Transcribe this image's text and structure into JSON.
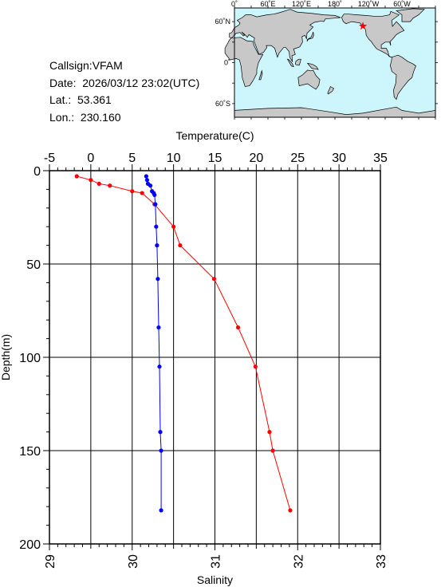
{
  "info": {
    "callsign": "Callsign:VFAM",
    "date": "Date:  2026/03/12 23:02(UTC)",
    "lat": "Lat.:  53.361",
    "lon": "Lon.:  230.160"
  },
  "map": {
    "top_labels": [
      "0˚",
      "60˚E",
      "120˚E",
      "180˚",
      "120˚W",
      "60˚W"
    ],
    "left_labels": [
      "60˚N",
      "0˚",
      "60˚S"
    ],
    "ocean_color": "#ccf5fc",
    "land_color": "#c8c8c8",
    "marker_color": "#ff0000",
    "marker_lon": 230.16,
    "marker_lat": 53.361
  },
  "chart_data": [
    {
      "type": "line",
      "title": "",
      "xlabel": "Temperature(C)",
      "ylabel": "Depth(m)",
      "xlim": [
        -5,
        35
      ],
      "ylim": [
        0,
        200
      ],
      "x_ticks": [
        "-5",
        "0",
        "5",
        "10",
        "15",
        "20",
        "25",
        "30",
        "35"
      ],
      "y_ticks": [
        "0",
        "50",
        "100",
        "150",
        "200"
      ],
      "y_inverted": true,
      "grid": true,
      "series": [
        {
          "color": "#ff0000",
          "points": [
            {
              "x": -1.7,
              "y": 3
            },
            {
              "x": 0.0,
              "y": 5
            },
            {
              "x": 1.0,
              "y": 7
            },
            {
              "x": 2.3,
              "y": 8
            },
            {
              "x": 5.0,
              "y": 11
            },
            {
              "x": 6.2,
              "y": 12
            },
            {
              "x": 7.7,
              "y": 18
            },
            {
              "x": 10.0,
              "y": 30
            },
            {
              "x": 10.8,
              "y": 40
            },
            {
              "x": 14.9,
              "y": 58
            },
            {
              "x": 17.8,
              "y": 84
            },
            {
              "x": 19.9,
              "y": 105
            },
            {
              "x": 21.6,
              "y": 140
            },
            {
              "x": 22.0,
              "y": 150
            },
            {
              "x": 24.1,
              "y": 182
            }
          ]
        }
      ]
    },
    {
      "type": "line",
      "title": "",
      "xlabel": "Salinity",
      "ylabel": "Depth(m)",
      "xlim": [
        29,
        33
      ],
      "ylim": [
        0,
        200
      ],
      "x_ticks": [
        "29",
        "30",
        "31",
        "32",
        "33"
      ],
      "y_inverted": true,
      "series": [
        {
          "color": "#0000ff",
          "points": [
            {
              "x": 30.17,
              "y": 3
            },
            {
              "x": 30.18,
              "y": 5
            },
            {
              "x": 30.19,
              "y": 7
            },
            {
              "x": 30.22,
              "y": 8
            },
            {
              "x": 30.24,
              "y": 11
            },
            {
              "x": 30.26,
              "y": 12
            },
            {
              "x": 30.27,
              "y": 13
            },
            {
              "x": 30.28,
              "y": 18
            },
            {
              "x": 30.29,
              "y": 30
            },
            {
              "x": 30.3,
              "y": 40
            },
            {
              "x": 30.31,
              "y": 58
            },
            {
              "x": 30.32,
              "y": 84
            },
            {
              "x": 30.33,
              "y": 105
            },
            {
              "x": 30.34,
              "y": 140
            },
            {
              "x": 30.35,
              "y": 150
            },
            {
              "x": 30.35,
              "y": 182
            }
          ]
        }
      ]
    }
  ]
}
